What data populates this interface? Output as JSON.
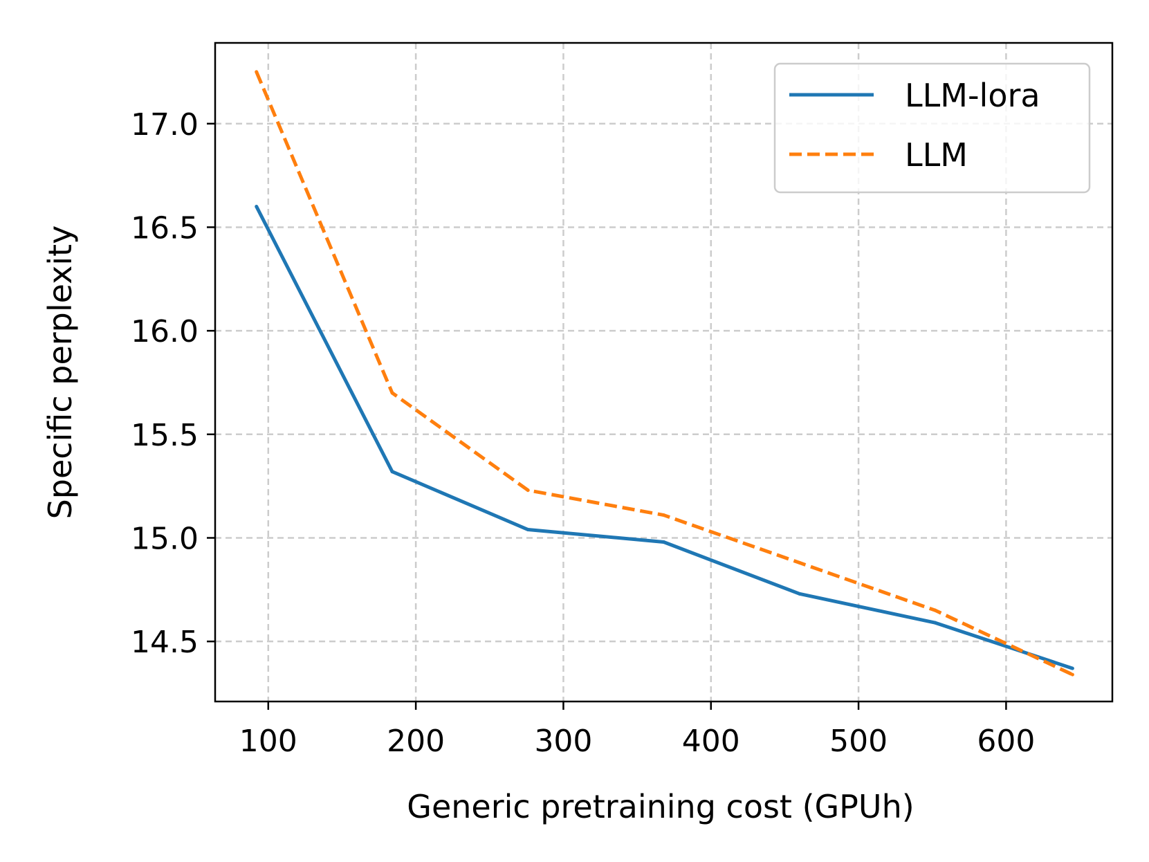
{
  "chart_data": {
    "type": "line",
    "title": "",
    "xlabel": "Generic pretraining cost (GPUh)",
    "ylabel": "Specific perplexity",
    "xlim": [
      64,
      672
    ],
    "ylim": [
      14.21,
      17.39
    ],
    "xticks": [
      100,
      200,
      300,
      400,
      500,
      600
    ],
    "xtick_labels": [
      "100",
      "200",
      "300",
      "400",
      "500",
      "600"
    ],
    "yticks": [
      14.5,
      15.0,
      15.5,
      16.0,
      16.5,
      17.0
    ],
    "ytick_labels": [
      "14.5",
      "15.0",
      "15.5",
      "16.0",
      "16.5",
      "17.0"
    ],
    "grid": true,
    "legend_position": "top-right",
    "series": [
      {
        "name": "LLM-lora",
        "color": "#1f77b4",
        "style": "solid",
        "x": [
          92,
          184,
          276,
          368,
          460,
          552,
          645
        ],
        "y": [
          16.6,
          15.32,
          15.04,
          14.98,
          14.73,
          14.59,
          14.37
        ]
      },
      {
        "name": "LLM",
        "color": "#ff7f0e",
        "style": "dashed",
        "x": [
          92,
          184,
          276,
          368,
          460,
          552,
          645
        ],
        "y": [
          17.25,
          15.7,
          15.23,
          15.11,
          14.88,
          14.65,
          14.34
        ]
      }
    ]
  }
}
